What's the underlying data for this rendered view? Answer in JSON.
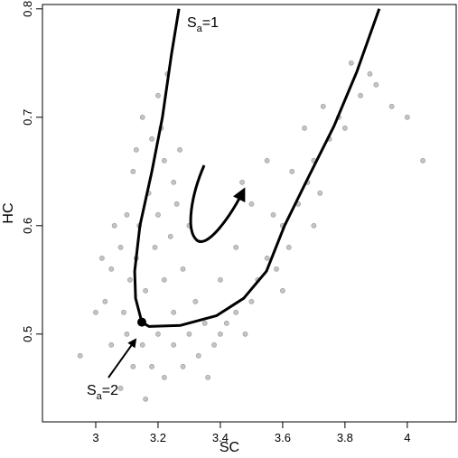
{
  "chart_data": {
    "type": "scatter",
    "xlabel": "SC",
    "ylabel": "HC",
    "xlim": [
      2.829,
      4.157
    ],
    "ylim": [
      0.419,
      0.804
    ],
    "xticks": [
      3,
      3.2,
      3.4,
      3.6,
      3.8,
      4
    ],
    "yticks": [
      0.5,
      0.6,
      0.7,
      0.8
    ],
    "annotations": [
      {
        "main": "S",
        "sub": "a",
        "rest": "=1"
      },
      {
        "main": "S",
        "sub": "a",
        "rest": "=2"
      }
    ],
    "series": [
      {
        "type": "scatter",
        "color": "#c4c4c4",
        "x": [
          3.15,
          3.2,
          3.18,
          3.22,
          3.12,
          3.17,
          3.25,
          3.1,
          3.14,
          3.2,
          3.08,
          3.13,
          3.19,
          3.24,
          3.05,
          3.11,
          3.16,
          3.22,
          3.03,
          3.09,
          3.28,
          3.26,
          3.3,
          3.06,
          3.02,
          3.21,
          3.23,
          3.27,
          3.0,
          3.13,
          3.1,
          3.15,
          3.2,
          3.25,
          3.3,
          3.35,
          3.4,
          3.45,
          3.18,
          3.22,
          3.28,
          3.33,
          3.38,
          3.42,
          3.05,
          3.12,
          3.08,
          3.25,
          3.32,
          3.5,
          3.48,
          2.95,
          3.16,
          3.36,
          3.52,
          3.55,
          3.58,
          3.6,
          3.62,
          3.57,
          3.65,
          3.68,
          3.63,
          3.7,
          3.72,
          3.75,
          3.78,
          3.73,
          3.8,
          3.85,
          3.88,
          3.82,
          3.9,
          3.95,
          4.0,
          4.05,
          3.67,
          3.5,
          3.45,
          3.55,
          3.6,
          3.7,
          3.4,
          3.47
        ],
        "y": [
          0.7,
          0.72,
          0.68,
          0.66,
          0.65,
          0.63,
          0.64,
          0.61,
          0.6,
          0.61,
          0.58,
          0.57,
          0.58,
          0.59,
          0.56,
          0.55,
          0.54,
          0.55,
          0.53,
          0.52,
          0.56,
          0.62,
          0.6,
          0.6,
          0.57,
          0.69,
          0.74,
          0.67,
          0.52,
          0.67,
          0.5,
          0.49,
          0.5,
          0.49,
          0.5,
          0.51,
          0.5,
          0.52,
          0.47,
          0.46,
          0.47,
          0.48,
          0.49,
          0.51,
          0.49,
          0.47,
          0.45,
          0.52,
          0.53,
          0.53,
          0.5,
          0.48,
          0.44,
          0.46,
          0.55,
          0.57,
          0.56,
          0.6,
          0.58,
          0.61,
          0.62,
          0.64,
          0.65,
          0.66,
          0.63,
          0.68,
          0.7,
          0.71,
          0.69,
          0.72,
          0.74,
          0.75,
          0.73,
          0.71,
          0.7,
          0.66,
          0.69,
          0.62,
          0.58,
          0.66,
          0.54,
          0.6,
          0.55,
          0.64
        ]
      },
      {
        "type": "line",
        "color": "#000000",
        "x": [
          3.267,
          3.243,
          3.214,
          3.18,
          3.142,
          3.125,
          3.128,
          3.148,
          3.171,
          3.272,
          3.388,
          3.475,
          3.548,
          3.606,
          3.678,
          3.765,
          3.838,
          3.91
        ],
        "y": [
          0.8,
          0.758,
          0.7,
          0.65,
          0.6,
          0.558,
          0.533,
          0.511,
          0.507,
          0.508,
          0.517,
          0.533,
          0.558,
          0.6,
          0.642,
          0.692,
          0.742,
          0.8
        ]
      },
      {
        "type": "point",
        "color": "#000000",
        "x": [
          3.148
        ],
        "y": [
          0.511
        ]
      }
    ]
  }
}
